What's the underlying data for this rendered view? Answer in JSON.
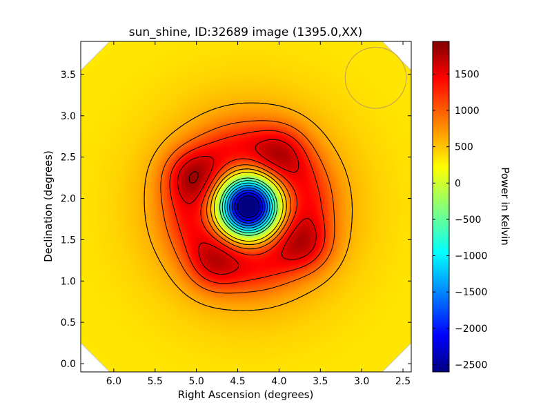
{
  "chart_data": {
    "type": "heatmap",
    "title": "sun_shine, ID:32689 image (1395.0,XX)",
    "xlabel": "Right Ascension (degrees)",
    "ylabel": "Declination (degrees)",
    "x_axis_reversed": true,
    "xlim": [
      6.4,
      2.4
    ],
    "ylim": [
      -0.1,
      3.9
    ],
    "xticks": [
      "6.0",
      "5.5",
      "5.0",
      "4.5",
      "4.0",
      "3.5",
      "3.0",
      "2.5"
    ],
    "yticks": [
      "0.0",
      "0.5",
      "1.0",
      "1.5",
      "2.0",
      "2.5",
      "3.0",
      "3.5"
    ],
    "colormap": "jet",
    "colorbar": {
      "label": "Power in Kelvin",
      "range": [
        -2600,
        1950
      ],
      "ticks": [
        "−2500",
        "−2000",
        "−1500",
        "−1000",
        "−500",
        "0",
        "500",
        "1000",
        "1500"
      ]
    },
    "field": {
      "background_value": 350,
      "center": {
        "ra": 4.37,
        "dec": 1.9,
        "value": -2600
      },
      "peaks": [
        {
          "ra": 5.08,
          "dec": 2.28,
          "value": 1950
        },
        {
          "ra": 3.98,
          "dec": 2.57,
          "value": 1850
        },
        {
          "ra": 3.66,
          "dec": 1.43,
          "value": 1900
        },
        {
          "ra": 4.8,
          "dec": 1.18,
          "value": 1850
        }
      ]
    },
    "beam": {
      "ra": 2.83,
      "dec": 3.46,
      "radius_deg": 0.37
    },
    "grid": false,
    "legend": "none"
  }
}
